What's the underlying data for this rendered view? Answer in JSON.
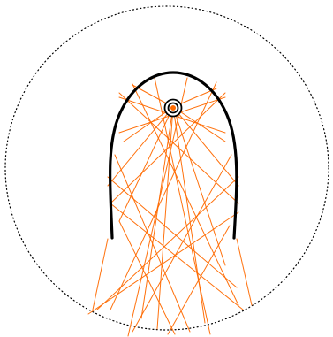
{
  "colors": {
    "background": "#ffffff",
    "mirror": "#000000",
    "rays": "#ff6a00",
    "source_ring": "#000000",
    "source_fill": "#ff6a00",
    "boundary": "#000000"
  },
  "boundary": {
    "style": "dotted"
  },
  "mirror": {
    "shape": "parabolic-arch"
  },
  "source": {
    "rings": 2
  },
  "rays": {
    "count": 22
  }
}
